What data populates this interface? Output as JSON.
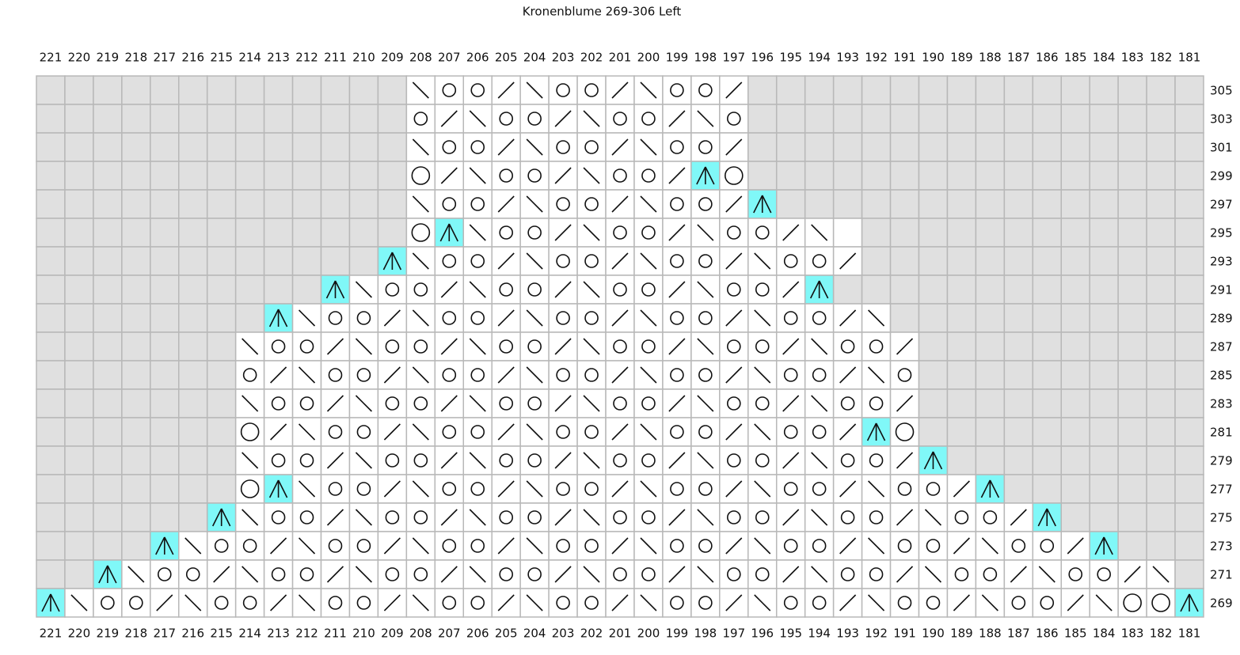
{
  "title": "Kronenblume 269-306 Left",
  "columns": [
    221,
    220,
    219,
    218,
    217,
    216,
    215,
    214,
    213,
    212,
    211,
    210,
    209,
    208,
    207,
    206,
    205,
    204,
    203,
    202,
    201,
    200,
    199,
    198,
    197,
    196,
    195,
    194,
    193,
    192,
    191,
    190,
    189,
    188,
    187,
    186,
    185,
    184,
    183,
    182,
    181
  ],
  "rows": [
    305,
    303,
    301,
    299,
    297,
    295,
    293,
    291,
    289,
    287,
    285,
    283,
    281,
    279,
    277,
    275,
    273,
    271,
    269
  ]
}
